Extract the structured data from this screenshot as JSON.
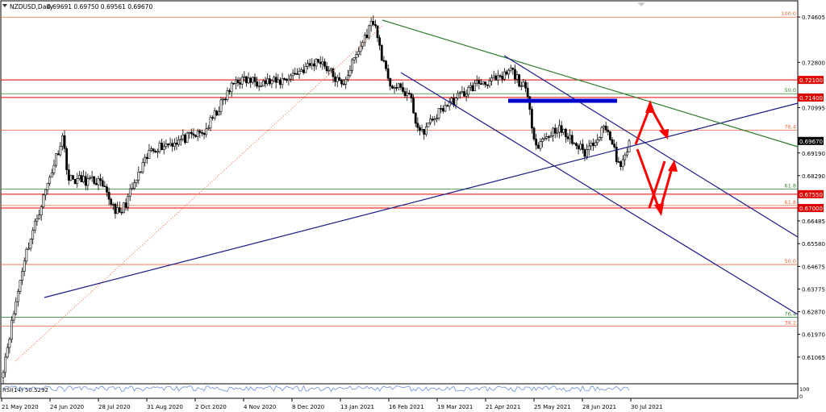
{
  "header": {
    "symbol": "NZDUSD,Daily",
    "ohlc": "0.69691 0.69750 0.69561 0.69670"
  },
  "indicator": {
    "label": "RSI(14) 50.5292"
  },
  "colors": {
    "bull": "#000000",
    "bear": "#000000",
    "fib_orange": "#e8673a",
    "fib_green": "#2e8b2e",
    "trend_blue": "#1a1a8c",
    "trend_green": "#2d7d2d",
    "level_red": "#e00000",
    "arrow_red": "#ff0000",
    "zone_blue": "#0000cc"
  },
  "chart_data": {
    "type": "candlestick",
    "title": "NZDUSD,Daily",
    "xlabel": "",
    "ylabel": "",
    "ylim": [
      0.6,
      0.7525
    ],
    "grid": false,
    "x_ticks": [
      "21 May 2020",
      "24 Jun 2020",
      "28 Jul 2020",
      "31 Aug 2020",
      "2 Oct 2020",
      "4 Nov 2020",
      "8 Dec 2020",
      "13 Jan 2021",
      "16 Feb 2021",
      "19 Mar 2021",
      "21 Apr 2021",
      "25 May 2021",
      "28 Jun 2021",
      "30 Jul 2021"
    ],
    "y_ticks": [
      0.74605,
      0.728,
      0.70995,
      0.6919,
      0.6829,
      0.66485,
      0.6558,
      0.64675,
      0.63775,
      0.6287,
      0.6197,
      0.61065
    ],
    "fib_levels": [
      {
        "label": "100.0",
        "price": 0.746,
        "color": "orange"
      },
      {
        "label": "50.0",
        "price": 0.7155,
        "color": "green"
      },
      {
        "label": "76.4",
        "price": 0.701,
        "color": "orange"
      },
      {
        "label": "61.8",
        "price": 0.6775,
        "color": "green"
      },
      {
        "label": "61.8",
        "price": 0.671,
        "color": "orange"
      },
      {
        "label": "50.0",
        "price": 0.6475,
        "color": "orange"
      },
      {
        "label": "76.4",
        "price": 0.6265,
        "color": "green"
      },
      {
        "label": "38.2",
        "price": 0.623,
        "color": "orange"
      }
    ],
    "price_levels": [
      {
        "label": "0.72100",
        "price": 0.721
      },
      {
        "label": "0.71400",
        "price": 0.714
      },
      {
        "label": "0.67550",
        "price": 0.6755
      },
      {
        "label": "0.67000",
        "price": 0.67
      }
    ],
    "current_price": {
      "label": "0.69670",
      "price": 0.6967
    },
    "anchors": [
      {
        "date_index": 0,
        "price": 0.6065
      },
      {
        "date_index": 10,
        "price": 0.65
      },
      {
        "date_index": 28,
        "price": 0.6985
      },
      {
        "date_index": 31,
        "price": 0.6815
      },
      {
        "date_index": 45,
        "price": 0.6805
      },
      {
        "date_index": 55,
        "price": 0.667
      },
      {
        "date_index": 70,
        "price": 0.6935
      },
      {
        "date_index": 95,
        "price": 0.7
      },
      {
        "date_index": 110,
        "price": 0.721
      },
      {
        "date_index": 130,
        "price": 0.72
      },
      {
        "date_index": 150,
        "price": 0.729
      },
      {
        "date_index": 160,
        "price": 0.7185
      },
      {
        "date_index": 175,
        "price": 0.745
      },
      {
        "date_index": 182,
        "price": 0.72
      },
      {
        "date_index": 192,
        "price": 0.715
      },
      {
        "date_index": 197,
        "price": 0.699
      },
      {
        "date_index": 208,
        "price": 0.71
      },
      {
        "date_index": 225,
        "price": 0.72
      },
      {
        "date_index": 235,
        "price": 0.721
      },
      {
        "date_index": 240,
        "price": 0.725
      },
      {
        "date_index": 247,
        "price": 0.717
      },
      {
        "date_index": 252,
        "price": 0.695
      },
      {
        "date_index": 262,
        "price": 0.702
      },
      {
        "date_index": 275,
        "price": 0.692
      },
      {
        "date_index": 285,
        "price": 0.703
      },
      {
        "date_index": 288,
        "price": 0.695
      },
      {
        "date_index": 292,
        "price": 0.685
      },
      {
        "date_index": 296,
        "price": 0.6967
      }
    ]
  }
}
